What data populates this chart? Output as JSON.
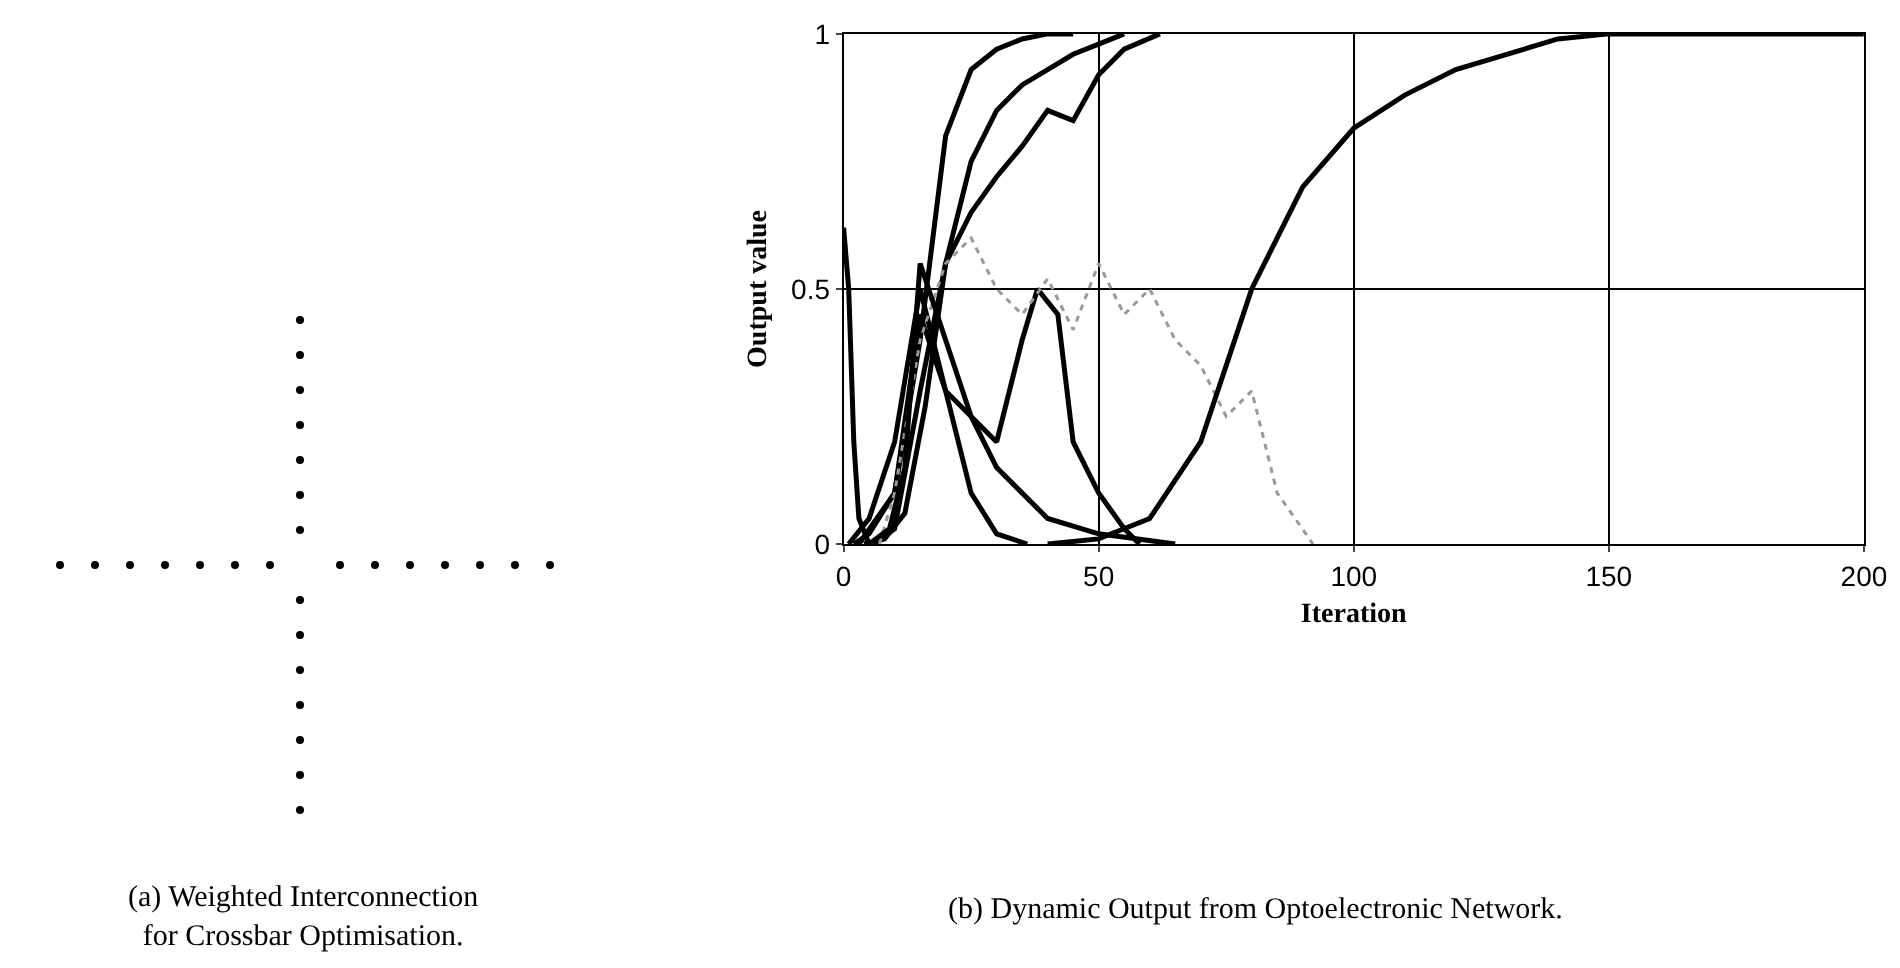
{
  "chart_data": {
    "type": "line",
    "xlabel": "Iteration",
    "ylabel": "Output value",
    "xlim": [
      0,
      200
    ],
    "xticks": [
      0,
      50,
      100,
      150,
      200
    ],
    "ylim": [
      0,
      1
    ],
    "yticks": [
      0,
      0.5,
      1
    ],
    "grid": true,
    "marker": "none",
    "annotations": [
      "(a) Weighted Interconnection\nfor Crossbar Optimisation.",
      "(b) Dynamic Output from Optoelectronic Network."
    ],
    "series": [
      {
        "color": "#000000",
        "x": [
          2,
          5,
          10,
          15,
          20,
          25,
          30,
          35,
          40,
          45
        ],
        "values": [
          0,
          0.02,
          0.1,
          0.4,
          0.8,
          0.93,
          0.97,
          0.99,
          1,
          1
        ]
      },
      {
        "color": "#000000",
        "x": [
          4,
          8,
          12,
          16,
          20,
          25,
          30,
          35,
          40,
          45,
          50,
          55
        ],
        "values": [
          0,
          0.01,
          0.06,
          0.27,
          0.55,
          0.75,
          0.85,
          0.9,
          0.93,
          0.96,
          0.98,
          1
        ]
      },
      {
        "color": "#000000",
        "x": [
          6,
          10,
          15,
          20,
          25,
          30,
          35,
          40,
          45,
          50,
          55,
          62
        ],
        "values": [
          0,
          0.03,
          0.3,
          0.55,
          0.65,
          0.72,
          0.78,
          0.85,
          0.83,
          0.92,
          0.97,
          1
        ]
      },
      {
        "color": "#000000",
        "x": [
          1,
          5,
          10,
          15,
          20,
          25,
          30,
          36
        ],
        "values": [
          0,
          0.05,
          0.2,
          0.5,
          0.3,
          0.1,
          0.02,
          0
        ]
      },
      {
        "color": "#000000",
        "x": [
          3,
          10,
          15,
          20,
          25,
          30,
          35,
          38,
          42,
          45,
          50,
          55,
          58
        ],
        "values": [
          0,
          0.1,
          0.45,
          0.3,
          0.25,
          0.2,
          0.4,
          0.5,
          0.45,
          0.2,
          0.1,
          0.03,
          0
        ]
      },
      {
        "color": "#999999",
        "line_style": "dotted",
        "x": [
          7,
          10,
          15,
          20,
          25,
          30,
          35,
          40,
          45,
          50,
          55,
          60,
          65,
          70,
          75,
          80,
          85,
          92
        ],
        "values": [
          0,
          0.1,
          0.4,
          0.55,
          0.6,
          0.5,
          0.45,
          0.52,
          0.42,
          0.55,
          0.45,
          0.5,
          0.4,
          0.35,
          0.25,
          0.3,
          0.1,
          0
        ]
      },
      {
        "color": "#000000",
        "x": [
          0,
          1,
          2,
          3,
          5
        ],
        "values": [
          0.62,
          0.5,
          0.2,
          0.05,
          0
        ]
      },
      {
        "color": "#000000",
        "x": [
          5,
          9,
          12,
          15,
          20,
          25,
          30,
          40,
          50,
          65
        ],
        "values": [
          0,
          0.03,
          0.15,
          0.55,
          0.4,
          0.25,
          0.15,
          0.05,
          0.02,
          0
        ]
      },
      {
        "color": "#000000",
        "x": [
          40,
          50,
          60,
          70,
          75,
          80,
          85,
          90,
          100,
          110,
          120,
          130,
          140,
          150,
          200
        ],
        "values": [
          0,
          0.01,
          0.05,
          0.2,
          0.35,
          0.5,
          0.6,
          0.7,
          0.815,
          0.88,
          0.93,
          0.96,
          0.99,
          1,
          1
        ]
      }
    ]
  }
}
